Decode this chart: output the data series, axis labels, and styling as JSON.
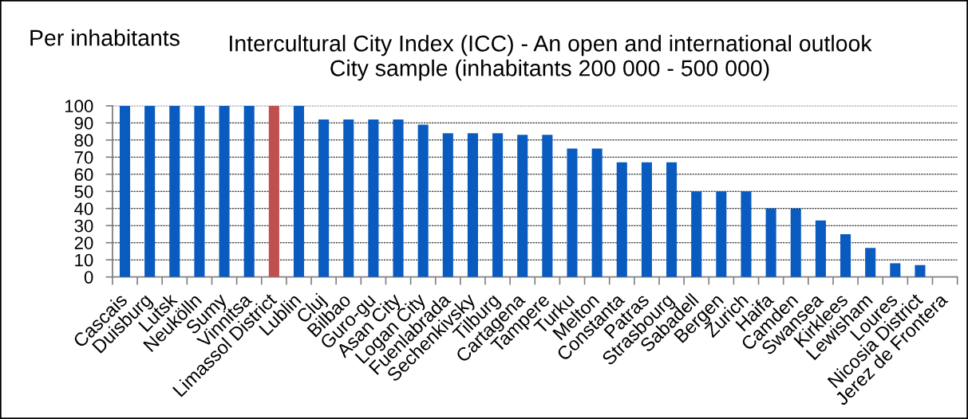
{
  "chart_data": {
    "type": "bar",
    "title": "Intercultural City Index (ICC) - An open and international outlook",
    "subtitle": "City sample (inhabitants 200 000 - 500 000)",
    "ylabel": "Per inhabitants",
    "categories": [
      "Cascais",
      "Duisburg",
      "Lutsk",
      "Neukölln",
      "Sumy",
      "Vinnitsa",
      "Limassol District",
      "Lublin",
      "Cluj",
      "Bilbao",
      "Guro-gu",
      "Asan City",
      "Logan City",
      "Fuenlabrada",
      "Sechenkivsky",
      "Tilburg",
      "Cartagena",
      "Tampere",
      "Turku",
      "Melton",
      "Constanta",
      "Patras",
      "Strasbourg",
      "Sabadell",
      "Bergen",
      "Zurich",
      "Haifa",
      "Camden",
      "Swansea",
      "Kirklees",
      "Lewisham",
      "Loures",
      "Nicosia District",
      "Jerez de Frontera"
    ],
    "values": [
      100,
      100,
      100,
      100,
      100,
      100,
      100,
      100,
      92,
      92,
      92,
      92,
      89,
      84,
      84,
      84,
      83,
      83,
      75,
      75,
      67,
      67,
      67,
      50,
      50,
      50,
      40,
      40,
      33,
      25,
      17,
      8,
      7,
      null
    ],
    "colors": [
      "#0a5bbf",
      "#0a5bbf",
      "#0a5bbf",
      "#0a5bbf",
      "#0a5bbf",
      "#0a5bbf",
      "#c0504d",
      "#0a5bbf",
      "#0a5bbf",
      "#0a5bbf",
      "#0a5bbf",
      "#0a5bbf",
      "#0a5bbf",
      "#0a5bbf",
      "#0a5bbf",
      "#0a5bbf",
      "#0a5bbf",
      "#0a5bbf",
      "#0a5bbf",
      "#0a5bbf",
      "#0a5bbf",
      "#0a5bbf",
      "#0a5bbf",
      "#0a5bbf",
      "#0a5bbf",
      "#0a5bbf",
      "#0a5bbf",
      "#0a5bbf",
      "#0a5bbf",
      "#0a5bbf",
      "#0a5bbf",
      "#0a5bbf",
      "#0a5bbf",
      "#0a5bbf"
    ],
    "ylim": [
      0,
      100
    ],
    "yticks": [
      0,
      10,
      20,
      30,
      40,
      50,
      60,
      70,
      80,
      90,
      100
    ],
    "grid": "y"
  }
}
